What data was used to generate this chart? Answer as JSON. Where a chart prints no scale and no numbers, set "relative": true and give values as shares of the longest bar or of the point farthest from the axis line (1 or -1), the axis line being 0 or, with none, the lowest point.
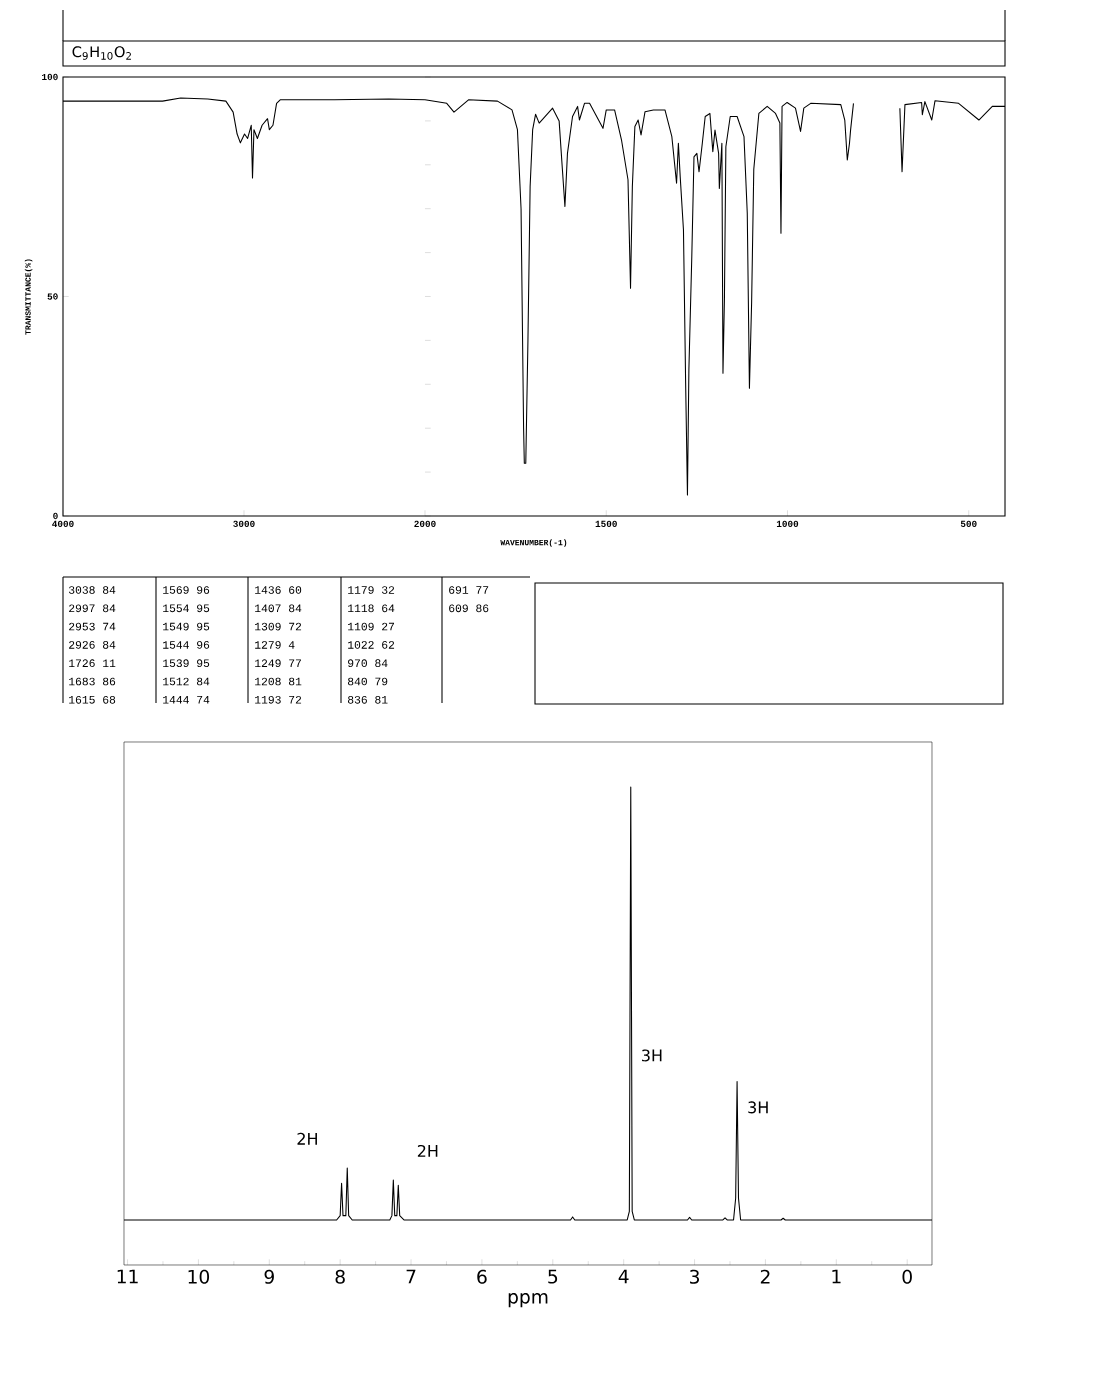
{
  "chart_data": [
    {
      "type": "line",
      "title": "C$_{9}$H$_{10}$O$_{2}$",
      "ylabel": "TRANSMITTANCE(%)",
      "color": "#000000",
      "x": [
        4000,
        3700,
        3450,
        3350,
        3200,
        3100,
        3060,
        3038,
        3020,
        2997,
        2980,
        2960,
        2953,
        2945,
        2926,
        2900,
        2870,
        2860,
        2840,
        2820,
        2800,
        2500,
        2200,
        2000
      ],
      "values": [
        94.5,
        94.5,
        94.5,
        95.2,
        95,
        94.5,
        92,
        87,
        85,
        87,
        86,
        89,
        77,
        88,
        86,
        89,
        90.5,
        88,
        89,
        94,
        94.8,
        94.8,
        95,
        94.8
      ],
      "xlim": [
        4000,
        2000
      ],
      "xticks": [
        4000,
        3000,
        2000
      ],
      "ylim": [
        0,
        100
      ],
      "yticks": [
        0,
        50,
        100
      ],
      "annotations": [
        "3038 84",
        "2997 84",
        "2953 74",
        "2926 84",
        "1726 11",
        "1683 86",
        "1615 68",
        "1569 96",
        "1554 95",
        "1549 95",
        "1544 96",
        "1539 95",
        "1512 84",
        "1444 74",
        "1436 60",
        "1407 84",
        "1309 72",
        "1279 4",
        "1249 77",
        "1208 81",
        "1193 72",
        "1179 32",
        "1118 64",
        "1109 27",
        "1022 62",
        "970 84",
        "840 79",
        "836 81",
        "691 77",
        "609 86"
      ]
    },
    {
      "type": "line",
      "xlabel": "WAVENUMBER(-1)",
      "color": "#000000",
      "tick_labels": "x",
      "x": [
        2000,
        1940,
        1920,
        1880,
        1800,
        1760,
        1745,
        1735,
        1728,
        1726,
        1722,
        1716,
        1710,
        1703,
        1695,
        1685,
        1648,
        1630,
        1621,
        1614,
        1607,
        1593,
        1579,
        1574,
        1560,
        1546,
        1509,
        1500,
        1477,
        1458,
        1440,
        1433,
        1428,
        1421,
        1412,
        1404,
        1393,
        1370,
        1338,
        1319,
        1306,
        1301,
        1296,
        1287,
        1281,
        1276,
        1272,
        1264,
        1258,
        1250,
        1244,
        1235,
        1227,
        1214,
        1206,
        1200,
        1190,
        1188,
        1181,
        1178,
        1174,
        1170,
        1158,
        1139,
        1120,
        1111,
        1105,
        1099,
        1093,
        1079,
        1056,
        1033,
        1021,
        1018,
        1015,
        1001,
        978,
        964,
        955,
        936,
        853,
        842,
        835,
        829,
        826,
        818,
        750,
        690,
        684,
        676,
        630,
        628,
        621,
        602,
        593,
        528,
        472,
        435,
        400
      ],
      "values": [
        94.8,
        94,
        92,
        94.8,
        94.5,
        92.5,
        88,
        70,
        20,
        12,
        12,
        40,
        75,
        88,
        91.5,
        89.5,
        92.9,
        90,
        79,
        70.5,
        82.6,
        91,
        93.3,
        90.2,
        94,
        94,
        88.3,
        92.5,
        92.5,
        85.7,
        76.6,
        51.9,
        75,
        88.7,
        90.2,
        86.8,
        92.1,
        92.5,
        92.5,
        86.4,
        75.8,
        84.9,
        77.3,
        65.2,
        30.3,
        4.8,
        33.4,
        59.1,
        81.8,
        82.6,
        78.4,
        84.9,
        91,
        91.7,
        83,
        87.9,
        82.6,
        74.6,
        84.9,
        32.5,
        49.2,
        84.1,
        91,
        91,
        86.4,
        69,
        29.1,
        48.5,
        79,
        91.7,
        93.3,
        91.7,
        89.5,
        64.4,
        93.3,
        94.2,
        92.9,
        87.6,
        92.9,
        94,
        93.7,
        90.2,
        81.1,
        84.9,
        87.9,
        94,
        null,
        92.9,
        78.4,
        93.7,
        94.2,
        91.4,
        94.4,
        90.2,
        94.6,
        94,
        90.2,
        93.3,
        93.3
      ],
      "xlim": [
        2000,
        400
      ],
      "xticks": [
        1500,
        1000,
        500
      ],
      "ylim": [
        0,
        100
      ]
    },
    {
      "type": "line",
      "xlabel": "ppm",
      "color": "#000000",
      "relative": true,
      "x": [
        11.05,
        8.05,
        8.0,
        7.98,
        7.96,
        7.92,
        7.9,
        7.88,
        7.83,
        7.3,
        7.27,
        7.25,
        7.23,
        7.2,
        7.18,
        7.16,
        7.1,
        4.75,
        4.72,
        4.69,
        3.95,
        3.92,
        3.9,
        3.88,
        3.85,
        3.1,
        3.07,
        3.04,
        2.6,
        2.57,
        2.54,
        2.45,
        2.42,
        2.4,
        2.38,
        2.35,
        1.78,
        1.75,
        1.72,
        -0.35
      ],
      "values": [
        0,
        0,
        0.01,
        0.085,
        0.01,
        0.01,
        0.12,
        0.01,
        0,
        0,
        0.01,
        0.092,
        0.01,
        0.01,
        0.08,
        0.01,
        0,
        0,
        0.007,
        0,
        0,
        0.02,
        1,
        0.02,
        0,
        0,
        0.006,
        0,
        0,
        0.005,
        0,
        0,
        0.05,
        0.32,
        0.05,
        0,
        0,
        0.004,
        0,
        0
      ],
      "xlim": [
        11.05,
        -0.35
      ],
      "xticks": [
        11,
        10,
        9,
        8,
        7,
        6,
        5,
        4,
        3,
        2,
        1,
        0
      ],
      "annotations": [
        {
          "text": "2H",
          "x": 7.9,
          "y": 0.12
        },
        {
          "text": "2H",
          "x": 7.25,
          "y": 0.092
        },
        {
          "text": "3H",
          "x": 3.9,
          "y": 0.38
        },
        {
          "text": "3H",
          "x": 2.4,
          "y": 0.26
        }
      ]
    }
  ]
}
